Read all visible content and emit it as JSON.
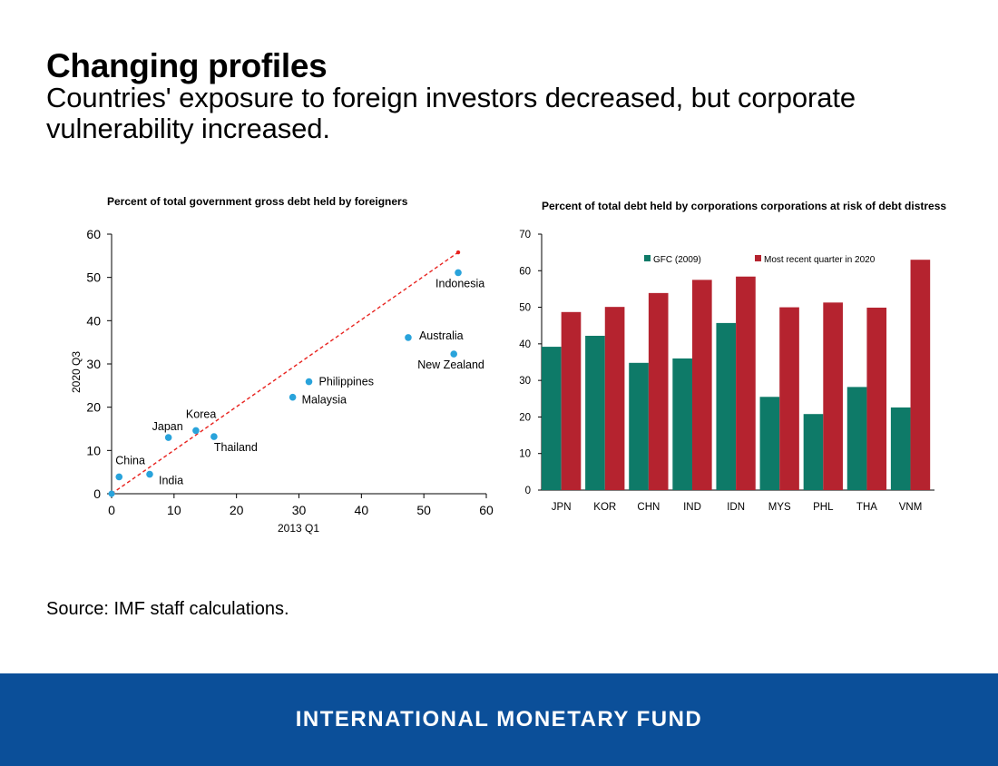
{
  "page": {
    "title": "Changing profiles",
    "subtitle": "Countries' exposure to foreign investors decreased, but corporate vulnerability increased.",
    "source": "Source: IMF staff calculations.",
    "footer": "INTERNATIONAL MONETARY FUND"
  },
  "chart_data": [
    {
      "type": "scatter",
      "title": "Percent of total government gross debt held by foreigners",
      "xlabel": "2013 Q1",
      "ylabel": "2020 Q3",
      "xlim": [
        0,
        60
      ],
      "ylim": [
        0,
        60
      ],
      "xticks": [
        0,
        10,
        20,
        30,
        40,
        50,
        60
      ],
      "yticks": [
        0,
        10,
        20,
        30,
        40,
        50,
        60
      ],
      "grid": false,
      "point_color": "#29a3db",
      "reference_line": {
        "style": "dashed",
        "color": "#e8231f",
        "from": [
          0,
          0
        ],
        "to": [
          55.5,
          55.8
        ]
      },
      "points": [
        {
          "label": "China",
          "x": 1.2,
          "y": 3.9
        },
        {
          "label": "India",
          "x": 6.1,
          "y": 4.5
        },
        {
          "label": "Japan",
          "x": 9.1,
          "y": 13.0
        },
        {
          "label": "Korea",
          "x": 13.5,
          "y": 14.6
        },
        {
          "label": "Thailand",
          "x": 16.4,
          "y": 13.2
        },
        {
          "label": "Malaysia",
          "x": 29.0,
          "y": 22.3
        },
        {
          "label": "Philippines",
          "x": 31.6,
          "y": 25.9
        },
        {
          "label": "Australia",
          "x": 47.5,
          "y": 36.1
        },
        {
          "label": "New Zealand",
          "x": 54.8,
          "y": 32.3
        },
        {
          "label": "Indonesia",
          "x": 55.5,
          "y": 51.1
        }
      ]
    },
    {
      "type": "bar",
      "title": "Percent of total debt held by corporations corporations at risk of debt distress",
      "xlabel": "",
      "ylabel": "",
      "ylim": [
        0,
        70
      ],
      "yticks": [
        0,
        10,
        20,
        30,
        40,
        50,
        60,
        70
      ],
      "grid": false,
      "legend": "top",
      "categories": [
        "JPN",
        "KOR",
        "CHN",
        "IND",
        "IDN",
        "MYS",
        "PHL",
        "THA",
        "VNM"
      ],
      "series": [
        {
          "name": "GFC (2009)",
          "color": "#0e7a68",
          "values": [
            39.2,
            42.2,
            34.8,
            36.0,
            45.7,
            25.5,
            20.8,
            28.2,
            22.6
          ]
        },
        {
          "name": "Most recent quarter in 2020",
          "color": "#b5232f",
          "values": [
            48.7,
            50.1,
            53.9,
            57.5,
            58.4,
            50.0,
            51.3,
            49.9,
            63.0
          ]
        }
      ]
    }
  ]
}
